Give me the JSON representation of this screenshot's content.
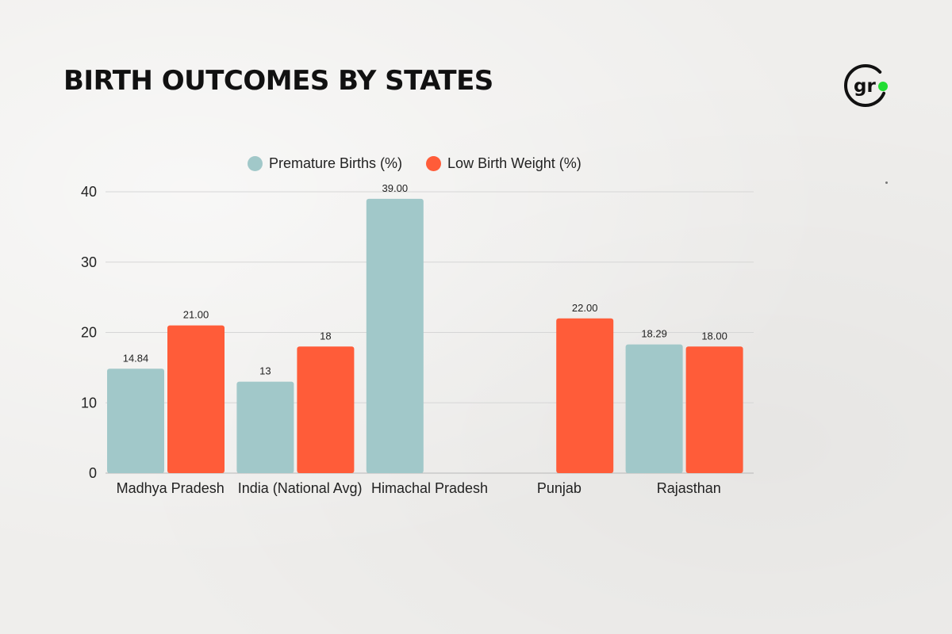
{
  "page": {
    "background": "#efeeec"
  },
  "logo": {
    "text": "gr",
    "dot_color": "#22dd33"
  },
  "chart_data": {
    "type": "bar",
    "title": "BIRTH OUTCOMES BY STATES",
    "categories": [
      "Madhya Pradesh",
      "India (National Avg)",
      "Himachal Pradesh",
      "Punjab",
      "Rajasthan"
    ],
    "series": [
      {
        "name": "Premature Births (%)",
        "color": "#a1c8c9",
        "values": [
          14.84,
          13,
          39,
          null,
          18.29
        ],
        "labels": [
          "14.84",
          "13",
          "39.00",
          "",
          "18.29"
        ]
      },
      {
        "name": "Low Birth Weight (%)",
        "color": "#ff5c39",
        "values": [
          21,
          18,
          null,
          22,
          18
        ],
        "labels": [
          "21.00",
          "18",
          "",
          "22.00",
          "18.00"
        ]
      }
    ],
    "ylim": [
      0,
      40
    ],
    "yticks": [
      0,
      10,
      20,
      30,
      40
    ],
    "xlabel": "",
    "ylabel": "",
    "grid": true,
    "legend_position": "top"
  }
}
